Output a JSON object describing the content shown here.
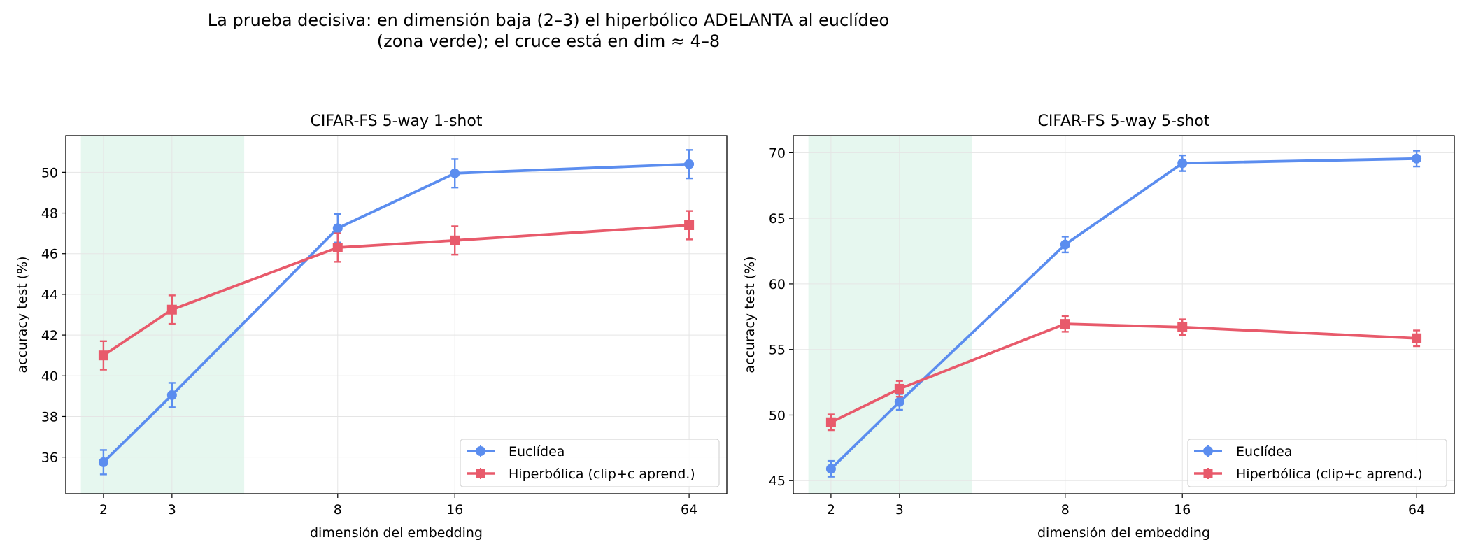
{
  "suptitle": {
    "line1": "La prueba decisiva: en dimensión baja (2–3) el hiperbólico ADELANTA al euclídeo",
    "line2": "(zona verde); el cruce está en dim ≈ 4–8"
  },
  "colors": {
    "euclidean": "#5b8def",
    "hyperbolic": "#e85a6b",
    "shade": "#e6f7ef",
    "grid": "#e5e5e5"
  },
  "chart_data": [
    {
      "type": "line",
      "title": "CIFAR-FS 5-way 1-shot",
      "xlabel": "dimensión del embedding",
      "ylabel": "accuracy test (%)",
      "x": [
        2,
        3,
        8,
        16,
        64
      ],
      "x_scale": "log2",
      "x_ticks": [
        "2",
        "3",
        "8",
        "16",
        "64"
      ],
      "ylim": [
        34.2,
        51.8
      ],
      "y_ticks": [
        36,
        38,
        40,
        42,
        44,
        46,
        48,
        50
      ],
      "shaded_x_range": [
        1.75,
        4.6
      ],
      "grid": true,
      "legend_position": "lower right",
      "series": [
        {
          "name": "Euclídea",
          "marker": "circle",
          "values": [
            35.75,
            39.05,
            47.25,
            49.95,
            50.4
          ],
          "errors": [
            0.6,
            0.6,
            0.7,
            0.7,
            0.7
          ]
        },
        {
          "name": "Hiperbólica (clip+c aprend.)",
          "marker": "square",
          "values": [
            41.0,
            43.25,
            46.3,
            46.65,
            47.4
          ],
          "errors": [
            0.7,
            0.7,
            0.7,
            0.7,
            0.7
          ]
        }
      ]
    },
    {
      "type": "line",
      "title": "CIFAR-FS 5-way 5-shot",
      "xlabel": "dimensión del embedding",
      "ylabel": "accuracy test (%)",
      "x": [
        2,
        3,
        8,
        16,
        64
      ],
      "x_scale": "log2",
      "x_ticks": [
        "2",
        "3",
        "8",
        "16",
        "64"
      ],
      "ylim": [
        44.0,
        71.3
      ],
      "y_ticks": [
        45,
        50,
        55,
        60,
        65,
        70
      ],
      "shaded_x_range": [
        1.75,
        4.6
      ],
      "grid": true,
      "legend_position": "lower right",
      "series": [
        {
          "name": "Euclídea",
          "marker": "circle",
          "values": [
            45.9,
            51.0,
            63.0,
            69.2,
            69.55
          ],
          "errors": [
            0.6,
            0.6,
            0.6,
            0.6,
            0.6
          ]
        },
        {
          "name": "Hiperbólica (clip+c aprend.)",
          "marker": "square",
          "values": [
            49.45,
            52.0,
            56.95,
            56.7,
            55.85
          ],
          "errors": [
            0.6,
            0.6,
            0.6,
            0.6,
            0.6
          ]
        }
      ]
    }
  ]
}
